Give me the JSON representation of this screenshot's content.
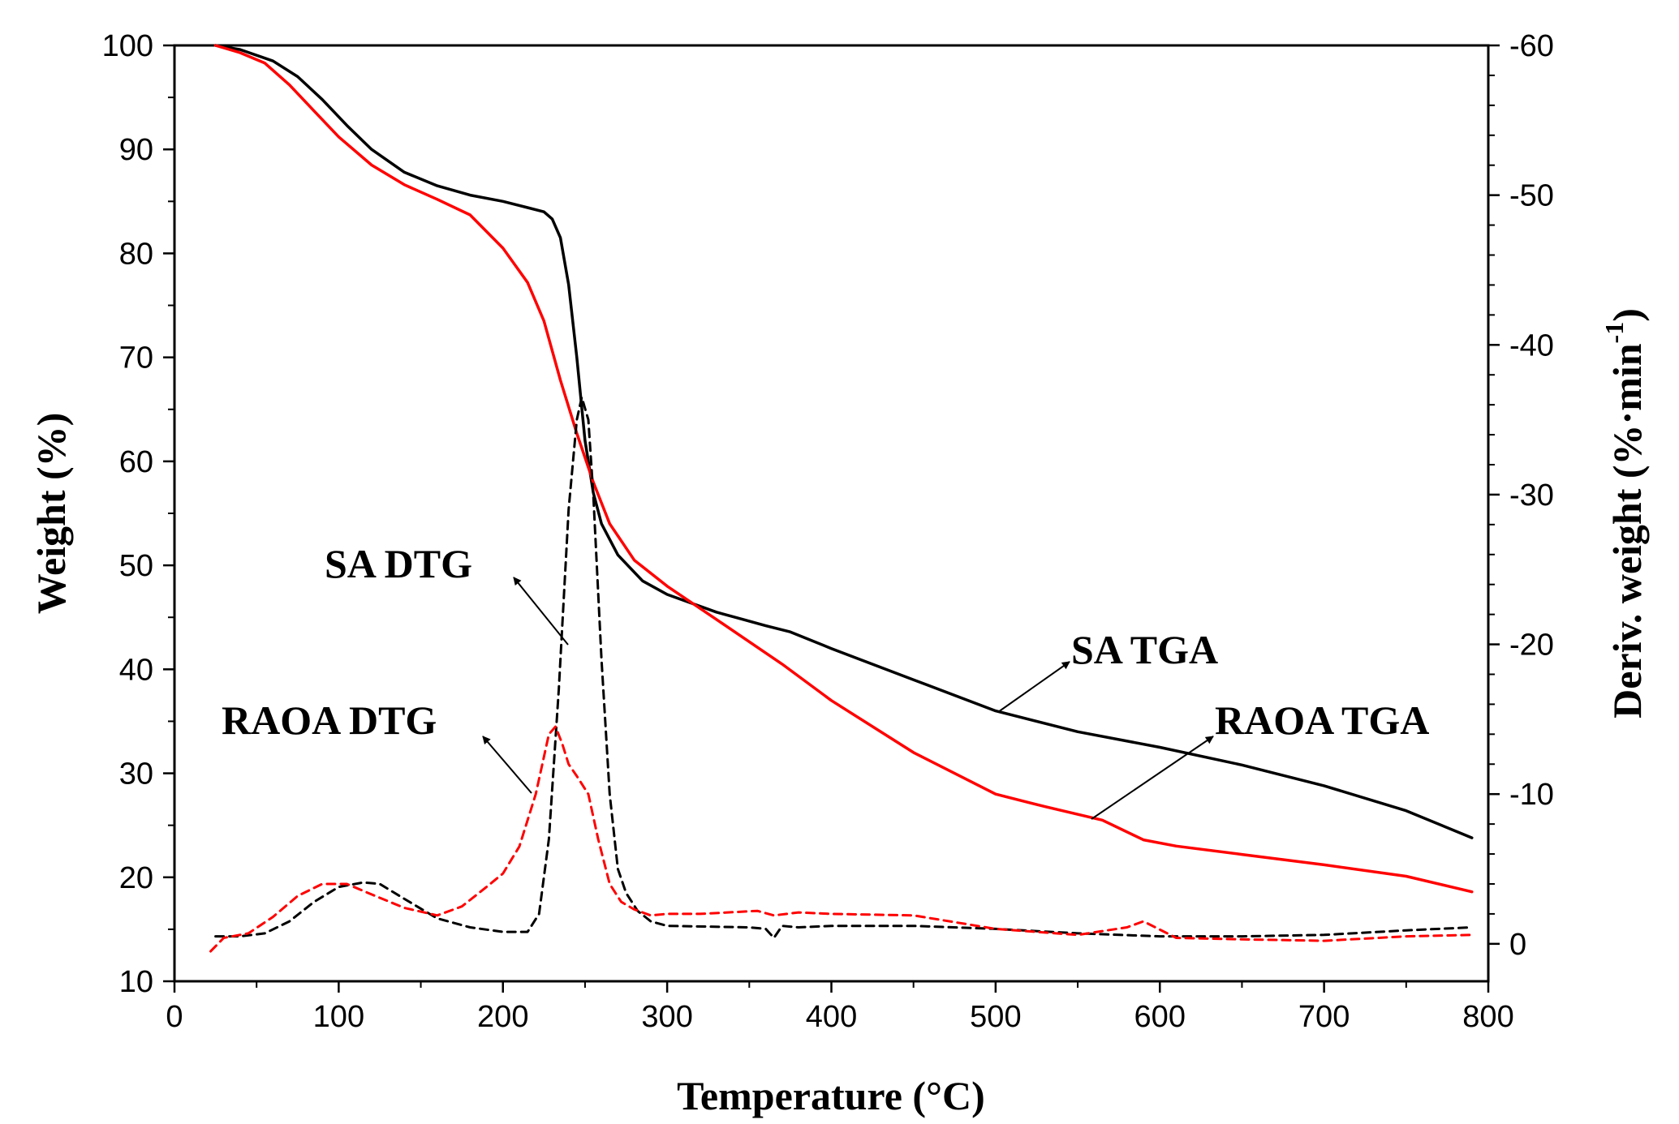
{
  "chart_data": {
    "type": "line",
    "title": "",
    "xlabel": "Temperature (°C)",
    "ylabel": "Weight (%)",
    "y2label": "Deriv. weight (%·min",
    "y2label_sup": "-1",
    "y2label_close": ")",
    "xlim": [
      0,
      800
    ],
    "ylim": [
      10,
      100
    ],
    "y2lim": [
      2.5,
      -60
    ],
    "xticks": [
      0,
      100,
      200,
      300,
      400,
      500,
      600,
      700,
      800
    ],
    "yticks": [
      10,
      20,
      30,
      40,
      50,
      60,
      70,
      80,
      90,
      100
    ],
    "y2ticks": [
      0,
      -10,
      -20,
      -30,
      -40,
      -50,
      -60
    ],
    "series": [
      {
        "name": "SA TGA",
        "axis": "left",
        "color": "#000000",
        "style": "solid",
        "x": [
          25,
          40,
          60,
          75,
          90,
          105,
          120,
          140,
          160,
          180,
          200,
          215,
          225,
          230,
          235,
          240,
          245,
          250,
          255,
          260,
          270,
          285,
          300,
          330,
          360,
          375,
          400,
          450,
          500,
          550,
          600,
          650,
          700,
          750,
          790
        ],
        "y": [
          100,
          99.6,
          98.5,
          97,
          94.8,
          92.3,
          90,
          87.8,
          86.5,
          85.6,
          85,
          84.4,
          84,
          83.3,
          81.5,
          77,
          70,
          62,
          57,
          54,
          51,
          48.5,
          47.2,
          45.5,
          44.2,
          43.6,
          42,
          39,
          36,
          34,
          32.5,
          30.8,
          28.8,
          26.4,
          23.8
        ]
      },
      {
        "name": "RAOA TGA",
        "axis": "left",
        "color": "#ff0000",
        "style": "solid",
        "x": [
          25,
          40,
          55,
          70,
          85,
          100,
          120,
          140,
          160,
          180,
          200,
          215,
          225,
          235,
          245,
          255,
          265,
          280,
          300,
          330,
          370,
          400,
          450,
          500,
          530,
          565,
          590,
          610,
          650,
          700,
          750,
          790
        ],
        "y": [
          100,
          99.3,
          98.3,
          96.2,
          93.7,
          91.2,
          88.5,
          86.6,
          85.2,
          83.7,
          80.5,
          77.2,
          73.5,
          67.8,
          62.7,
          58,
          54,
          50.5,
          48,
          44.8,
          40.5,
          37,
          32,
          28,
          26.8,
          25.5,
          23.6,
          23,
          22.2,
          21.2,
          20.1,
          18.6
        ]
      },
      {
        "name": "SA DTG",
        "axis": "right",
        "color": "#000000",
        "style": "dashed",
        "x": [
          25,
          40,
          55,
          70,
          85,
          100,
          115,
          125,
          140,
          160,
          180,
          200,
          215,
          222,
          228,
          234,
          240,
          245,
          248,
          252,
          255,
          260,
          265,
          270,
          275,
          282,
          290,
          300,
          350,
          360,
          365,
          370,
          380,
          400,
          450,
          500,
          550,
          600,
          650,
          700,
          750,
          790
        ],
        "y": [
          -0.5,
          -0.5,
          -0.7,
          -1.5,
          -2.8,
          -3.8,
          -4.1,
          -4,
          -3,
          -1.7,
          -1.1,
          -0.8,
          -0.8,
          -2,
          -7,
          -17,
          -29,
          -35,
          -36.5,
          -35,
          -30,
          -19,
          -10,
          -5,
          -3.4,
          -2.2,
          -1.5,
          -1.2,
          -1.1,
          -1,
          -0.4,
          -1.2,
          -1.1,
          -1.2,
          -1.2,
          -1,
          -0.7,
          -0.5,
          -0.5,
          -0.6,
          -0.9,
          -1.1
        ]
      },
      {
        "name": "RAOA DTG",
        "axis": "right",
        "color": "#ff0000",
        "style": "dashed",
        "x": [
          22,
          30,
          45,
          60,
          75,
          90,
          105,
          120,
          140,
          160,
          175,
          190,
          200,
          210,
          220,
          228,
          232,
          236,
          240,
          245,
          252,
          258,
          265,
          272,
          280,
          290,
          300,
          320,
          355,
          365,
          380,
          400,
          450,
          500,
          550,
          580,
          590,
          610,
          650,
          700,
          750,
          790
        ],
        "y": [
          0.5,
          -0.4,
          -0.7,
          -1.8,
          -3.2,
          -4,
          -4,
          -3.3,
          -2.4,
          -1.9,
          -2.5,
          -3.8,
          -4.7,
          -6.5,
          -10,
          -14,
          -14.5,
          -13.4,
          -12,
          -11.2,
          -10,
          -7,
          -4,
          -2.8,
          -2.3,
          -1.9,
          -2,
          -2,
          -2.2,
          -1.9,
          -2.1,
          -2,
          -1.9,
          -1,
          -0.6,
          -1.1,
          -1.5,
          -0.4,
          -0.3,
          -0.2,
          -0.5,
          -0.6
        ]
      }
    ],
    "annotations": [
      {
        "label": "SA DTG",
        "points_to": "SA DTG"
      },
      {
        "label": "RAOA DTG",
        "points_to": "RAOA DTG"
      },
      {
        "label": "SA TGA",
        "points_to": "SA TGA"
      },
      {
        "label": "RAOA TGA",
        "points_to": "RAOA TGA"
      }
    ],
    "grid": false,
    "legend": "none"
  }
}
